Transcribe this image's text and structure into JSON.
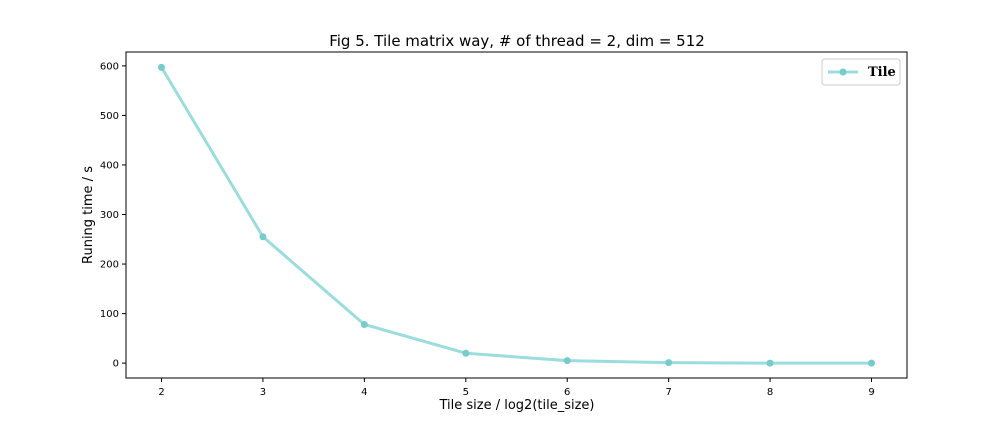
{
  "chart_data": {
    "type": "line",
    "title": "Fig 5. Tile matrix way, # of thread = 2, dim = 512",
    "xlabel": "Tile size / log2(tile_size)",
    "ylabel": "Runing time / s",
    "x": [
      2,
      3,
      4,
      5,
      6,
      7,
      8,
      9
    ],
    "x_ticks": [
      "2",
      "3",
      "4",
      "5",
      "6",
      "7",
      "8",
      "9"
    ],
    "y_ticks": [
      "0",
      "100",
      "200",
      "300",
      "400",
      "500",
      "600"
    ],
    "y_tick_values": [
      0,
      100,
      200,
      300,
      400,
      500,
      600
    ],
    "xlim": [
      1.65,
      9.35
    ],
    "ylim": [
      -30,
      628
    ],
    "grid": false,
    "legend_position": "top-right",
    "series": [
      {
        "name": "Tile",
        "color": "#9bdcdc",
        "marker_color": "#76cccb",
        "values": [
          597,
          255,
          78,
          20,
          5,
          1,
          0,
          0
        ]
      }
    ]
  }
}
